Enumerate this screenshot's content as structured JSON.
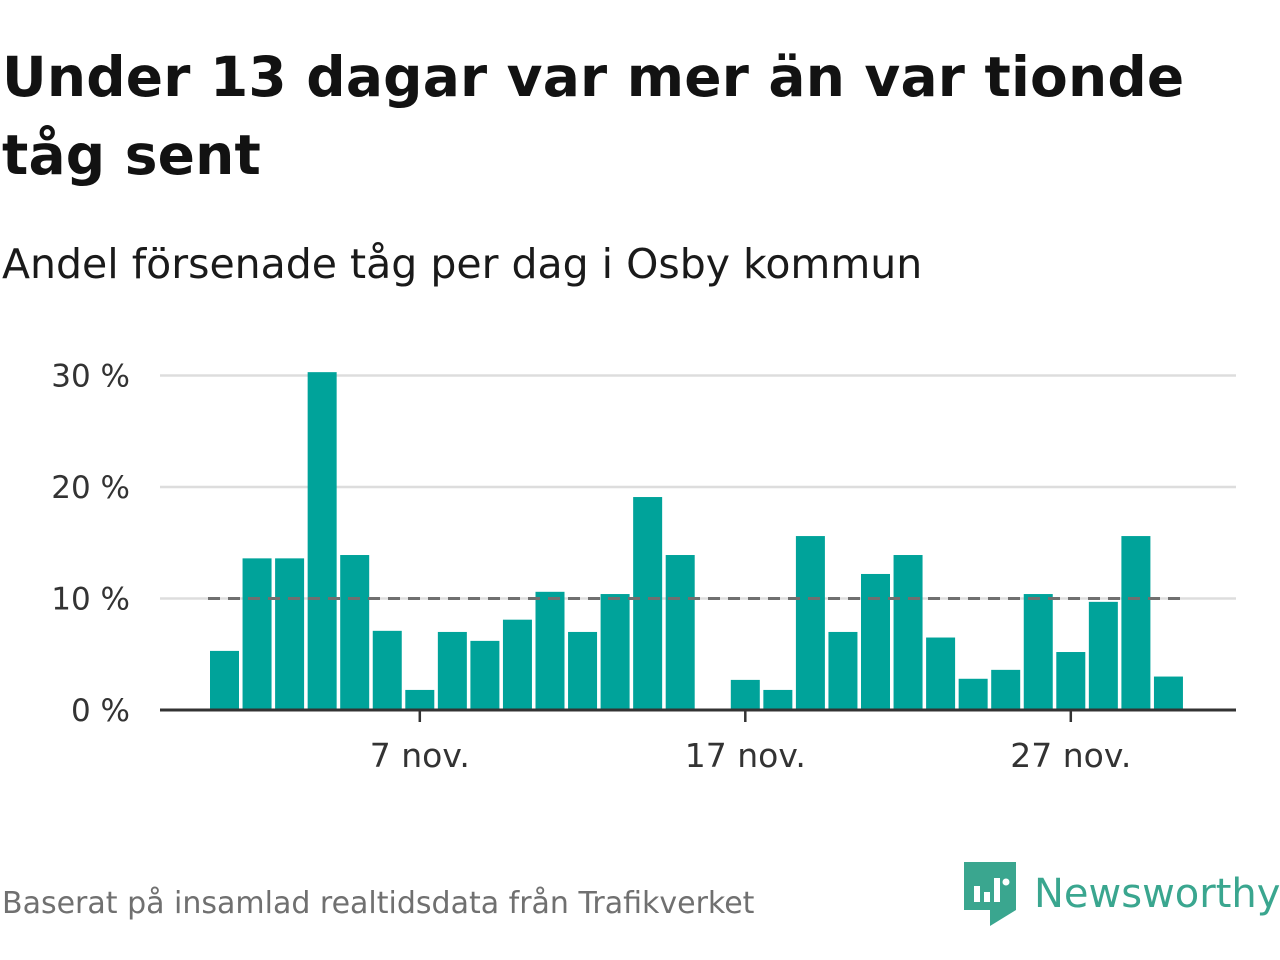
{
  "title": "Under 13 dagar var mer än var tionde tåg sent",
  "subtitle": "Andel försenade tåg per dag i Osby kommun",
  "source": "Baserat på insamlad realtidsdata från Trafikverket",
  "brand": {
    "name": "Newsworthy",
    "icon": "newsworthy-logo-icon",
    "color": "#3aa68f"
  },
  "colors": {
    "bar": "#00a39a",
    "grid": "#dddddd",
    "axis": "#333333",
    "reference": "#707070"
  },
  "chart_data": {
    "type": "bar",
    "x": [
      "1 nov.",
      "2 nov.",
      "3 nov.",
      "4 nov.",
      "5 nov.",
      "6 nov.",
      "7 nov.",
      "8 nov.",
      "9 nov.",
      "10 nov.",
      "11 nov.",
      "12 nov.",
      "13 nov.",
      "14 nov.",
      "15 nov.",
      "16 nov.",
      "17 nov.",
      "18 nov.",
      "19 nov.",
      "20 nov.",
      "21 nov.",
      "22 nov.",
      "23 nov.",
      "24 nov.",
      "25 nov.",
      "26 nov.",
      "27 nov.",
      "28 nov.",
      "29 nov.",
      "30 nov."
    ],
    "values": [
      5.3,
      13.6,
      13.6,
      30.3,
      13.9,
      7.1,
      1.8,
      7.0,
      6.2,
      8.1,
      10.6,
      7.0,
      10.4,
      19.1,
      13.9,
      0,
      2.7,
      1.8,
      15.6,
      7.0,
      12.2,
      13.9,
      6.5,
      2.8,
      3.6,
      10.4,
      5.2,
      9.7,
      15.6,
      3.0
    ],
    "y_ticks": [
      "0 %",
      "10 %",
      "20 %",
      "30 %"
    ],
    "y_tick_values": [
      0,
      10,
      20,
      30
    ],
    "x_ticks": [
      "7 nov.",
      "17 nov.",
      "27 nov."
    ],
    "reference_line": 10,
    "ylim": [
      0,
      30
    ],
    "grid": true,
    "xlabel": "",
    "ylabel": ""
  }
}
